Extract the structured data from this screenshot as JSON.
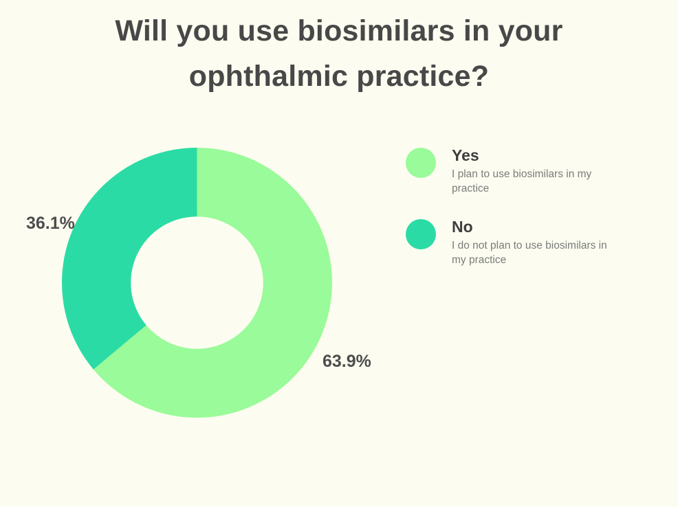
{
  "page": {
    "background": "#FCFDF0"
  },
  "chart_data": {
    "type": "pie",
    "subtype": "donut",
    "title": "Will you use biosimilars in your ophthalmic practice?",
    "categories": [
      "Yes",
      "No"
    ],
    "values": [
      63.9,
      36.1
    ],
    "slices": [
      {
        "label": "Yes",
        "value": 63.9,
        "pct_label": "63.9%",
        "color": "#99FB99",
        "description": "I plan to use biosimilars in my practice"
      },
      {
        "label": "No",
        "value": 36.1,
        "pct_label": "36.1%",
        "color": "#2BDBA5",
        "description": "I do not plan to use biosimilars in my practice"
      }
    ],
    "start_angle_deg": 0,
    "direction": "clockwise",
    "donut_hole_ratio": 0.49,
    "legend_position": "right",
    "data_labels": "outside",
    "text_colors": {
      "title": "#484848",
      "pct_label": "#4D4D4D",
      "legend_label": "#3E3E3E",
      "legend_desc": "#7B7B7B"
    }
  }
}
